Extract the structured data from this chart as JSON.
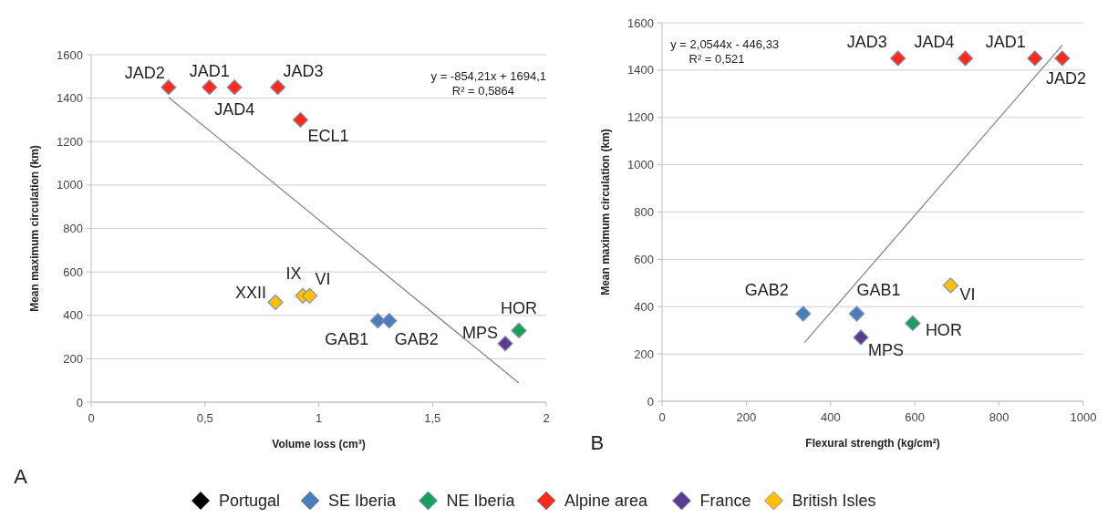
{
  "chart_data": [
    {
      "type": "scatter",
      "xlabel": "Volume loss (cm³)",
      "ylabel": "Mean maximum circulation (km)",
      "xlim": [
        0,
        2
      ],
      "xticks": [
        0,
        {
          "value": 0.5,
          "label": "0,5"
        },
        1,
        {
          "value": 1.5,
          "label": "1,5"
        },
        2
      ],
      "ylim": [
        0,
        1600
      ],
      "yticks": [
        0,
        200,
        400,
        600,
        800,
        1000,
        1200,
        1400,
        1600
      ],
      "grid": "y",
      "marker": "diamond",
      "legend": "bottom",
      "series": [
        {
          "name": "Portugal",
          "color": "#000000"
        },
        {
          "name": "SE Iberia",
          "color": "#4a7ebb",
          "x": [
            1.26,
            1.31
          ],
          "values": [
            375,
            375
          ]
        },
        {
          "name": "NE Iberia",
          "color": "#1aa05a",
          "x": [
            1.88
          ],
          "values": [
            330
          ]
        },
        {
          "name": "Alpine area",
          "color": "#ff2a1a",
          "x": [
            0.34,
            0.52,
            0.63,
            0.82,
            0.92
          ],
          "values": [
            1450,
            1450,
            1450,
            1450,
            1300
          ]
        },
        {
          "name": "France",
          "color": "#5a3d8e",
          "x": [
            1.82
          ],
          "values": [
            270
          ]
        },
        {
          "name": "British Isles",
          "color": "#ffc000",
          "x": [
            0.81,
            0.93,
            0.96
          ],
          "values": [
            460,
            490,
            490
          ]
        },
        {
          "type": "line",
          "color": "#808080",
          "marker": "none",
          "line_style": "solid",
          "x": [
            0.34,
            1.88
          ],
          "values": [
            1404,
            88
          ]
        }
      ],
      "annotations": [
        {
          "text": "JAD2",
          "x": 0.34,
          "y": 1450
        },
        {
          "text": "JAD1",
          "x": 0.52,
          "y": 1450
        },
        {
          "text": "JAD4",
          "x": 0.63,
          "y": 1450
        },
        {
          "text": "JAD3",
          "x": 0.82,
          "y": 1450
        },
        {
          "text": "ECL1",
          "x": 0.92,
          "y": 1300
        },
        {
          "text": "XXII",
          "x": 0.81,
          "y": 460
        },
        {
          "text": "IX",
          "x": 0.93,
          "y": 490
        },
        {
          "text": "VI",
          "x": 0.96,
          "y": 490
        },
        {
          "text": "GAB1",
          "x": 1.26,
          "y": 375
        },
        {
          "text": "GAB2",
          "x": 1.31,
          "y": 375
        },
        {
          "text": "MPS",
          "x": 1.82,
          "y": 270
        },
        {
          "text": "HOR",
          "x": 1.88,
          "y": 330
        },
        "y = -854,21x + 1694,1",
        "R² = 0,5864",
        "A"
      ]
    },
    {
      "type": "scatter",
      "xlabel": "Flexural strength (kg/cm²)",
      "ylabel": "Mean maximum circulation (km)",
      "xlim": [
        0,
        1000
      ],
      "xticks": [
        0,
        200,
        400,
        600,
        800,
        1000
      ],
      "ylim": [
        0,
        1600
      ],
      "yticks": [
        0,
        200,
        400,
        600,
        800,
        1000,
        1200,
        1400,
        1600
      ],
      "grid": "y",
      "marker": "diamond",
      "series": [
        {
          "name": "SE Iberia",
          "color": "#4a7ebb",
          "x": [
            335,
            462
          ],
          "values": [
            370,
            370
          ]
        },
        {
          "name": "NE Iberia",
          "color": "#1aa05a",
          "x": [
            595
          ],
          "values": [
            330
          ]
        },
        {
          "name": "Alpine area",
          "color": "#ff2a1a",
          "x": [
            560,
            720,
            885,
            950
          ],
          "values": [
            1450,
            1450,
            1450,
            1450
          ]
        },
        {
          "name": "France",
          "color": "#5a3d8e",
          "x": [
            472
          ],
          "values": [
            270
          ]
        },
        {
          "name": "British Isles",
          "color": "#ffc000",
          "x": [
            685
          ],
          "values": [
            490
          ]
        },
        {
          "type": "line",
          "color": "#808080",
          "marker": "none",
          "line_style": "solid",
          "x": [
            338,
            950
          ],
          "values": [
            248,
            1505
          ]
        }
      ],
      "annotations": [
        {
          "text": "JAD3",
          "x": 560,
          "y": 1450
        },
        {
          "text": "JAD4",
          "x": 720,
          "y": 1450
        },
        {
          "text": "JAD1",
          "x": 885,
          "y": 1450
        },
        {
          "text": "JAD2",
          "x": 950,
          "y": 1450
        },
        {
          "text": "GAB2",
          "x": 335,
          "y": 370
        },
        {
          "text": "GAB1",
          "x": 462,
          "y": 370
        },
        {
          "text": "MPS",
          "x": 472,
          "y": 270
        },
        {
          "text": "HOR",
          "x": 595,
          "y": 330
        },
        {
          "text": "VI",
          "x": 685,
          "y": 490
        },
        "y = 2,0544x - 446,33",
        "R² = 0,521",
        "B"
      ]
    }
  ]
}
